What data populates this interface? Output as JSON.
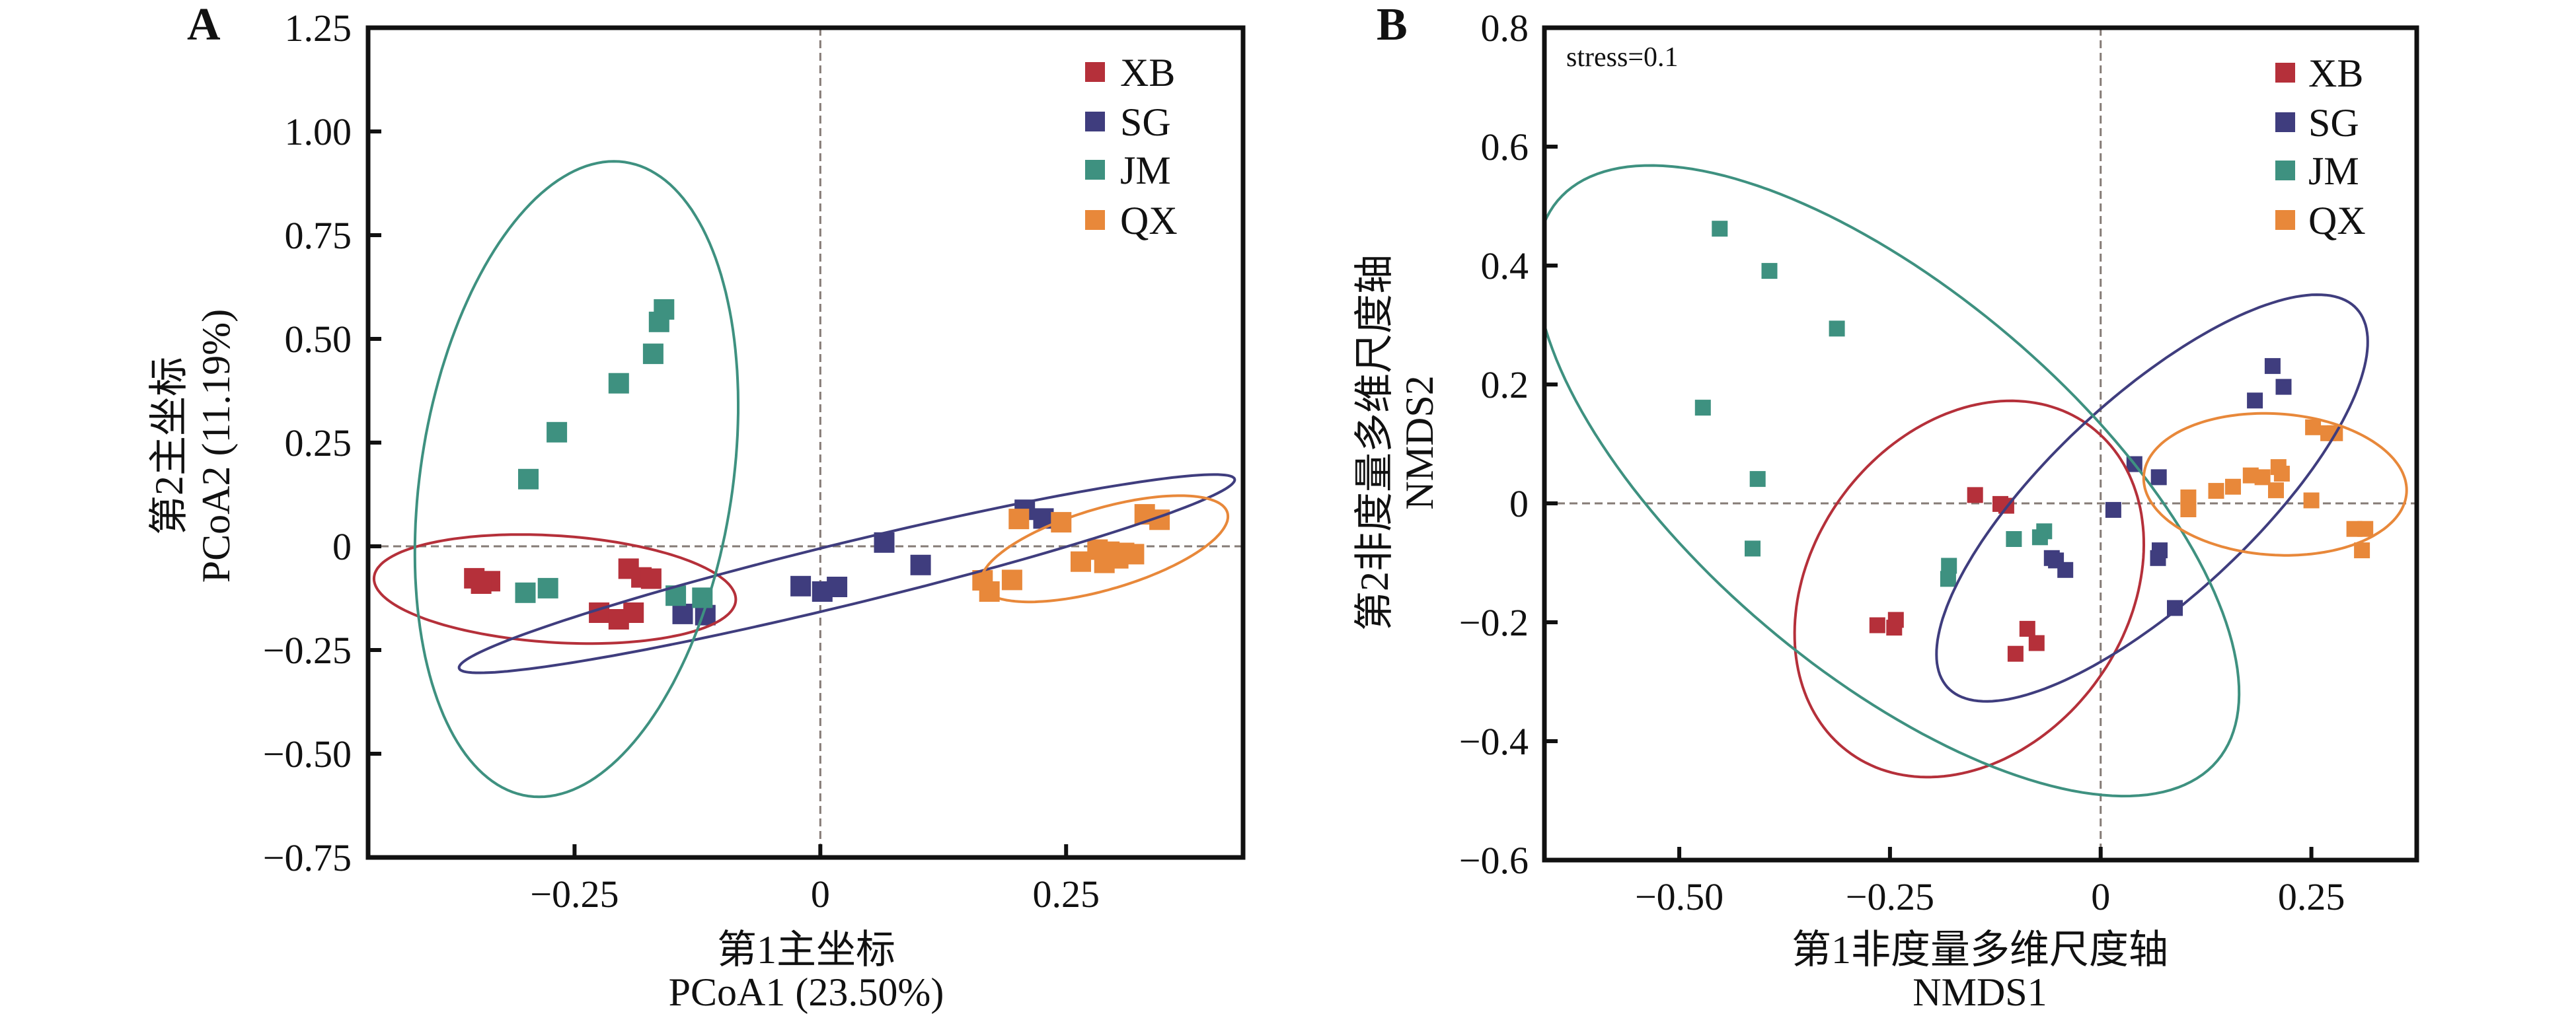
{
  "figure": {
    "panels": [
      "A",
      "B"
    ]
  },
  "groups": [
    {
      "name": "XB",
      "color": "#B5303A"
    },
    {
      "name": "SG",
      "color": "#3F3D7E"
    },
    {
      "name": "JM",
      "color": "#3E9180"
    },
    {
      "name": "QX",
      "color": "#E8883A"
    }
  ],
  "chart_data": [
    {
      "type": "scatter",
      "panel_label": "A",
      "title": "",
      "xlabel_cn": "第1主坐标",
      "xlabel": "PCoA1 (23.50%)",
      "ylabel_cn": "第2主坐标",
      "ylabel": "PCoA2 (11.19%)",
      "xlim": [
        -0.46,
        0.43
      ],
      "ylim": [
        -0.75,
        1.25
      ],
      "xticks": [
        -0.25,
        0,
        0.25
      ],
      "xtick_labels": [
        "−0.25",
        "0",
        "0.25"
      ],
      "yticks": [
        1.25,
        1.0,
        0.75,
        0.5,
        0.25,
        0,
        -0.25,
        -0.5,
        -0.75
      ],
      "ytick_labels": [
        "1.25",
        "1.00",
        "0.75",
        "0.50",
        "0.25",
        "0",
        "−0.25",
        "−0.50",
        "−0.75"
      ],
      "reference_lines": {
        "x": 0,
        "y": 0,
        "style": "dashed"
      },
      "legend": {
        "entries": [
          "XB",
          "SG",
          "JM",
          "QX"
        ],
        "placement": "top-right"
      },
      "annotation": "",
      "series": [
        {
          "name": "XB",
          "points": [
            [
              -0.352,
              -0.077
            ],
            [
              -0.336,
              -0.084
            ],
            [
              -0.345,
              -0.09
            ],
            [
              -0.195,
              -0.054
            ],
            [
              -0.182,
              -0.075
            ],
            [
              -0.172,
              -0.078
            ],
            [
              -0.225,
              -0.16
            ],
            [
              -0.205,
              -0.176
            ],
            [
              -0.19,
              -0.16
            ]
          ]
        },
        {
          "name": "SG",
          "points": [
            [
              -0.14,
              -0.163
            ],
            [
              -0.117,
              -0.166
            ],
            [
              -0.02,
              -0.096
            ],
            [
              0.002,
              -0.109
            ],
            [
              0.017,
              -0.098
            ],
            [
              0.065,
              0.009
            ],
            [
              0.102,
              -0.045
            ],
            [
              0.208,
              0.088
            ],
            [
              0.227,
              0.067
            ]
          ]
        },
        {
          "name": "JM",
          "points": [
            [
              -0.159,
              0.571
            ],
            [
              -0.164,
              0.541
            ],
            [
              -0.17,
              0.464
            ],
            [
              -0.205,
              0.393
            ],
            [
              -0.268,
              0.275
            ],
            [
              -0.297,
              0.162
            ],
            [
              -0.3,
              -0.112
            ],
            [
              -0.277,
              -0.101
            ],
            [
              -0.147,
              -0.119
            ],
            [
              -0.12,
              -0.124
            ]
          ]
        },
        {
          "name": "QX",
          "points": [
            [
              0.202,
              0.066
            ],
            [
              0.245,
              0.058
            ],
            [
              0.33,
              0.077
            ],
            [
              0.345,
              0.064
            ],
            [
              0.265,
              -0.037
            ],
            [
              0.282,
              -0.008
            ],
            [
              0.294,
              -0.013
            ],
            [
              0.309,
              -0.016
            ],
            [
              0.319,
              -0.019
            ],
            [
              0.289,
              -0.04
            ],
            [
              0.303,
              -0.029
            ],
            [
              0.165,
              -0.082
            ],
            [
              0.172,
              -0.109
            ],
            [
              0.195,
              -0.081
            ]
          ]
        }
      ],
      "ellipses": [
        {
          "group": "XB",
          "center": [
            -0.27,
            -0.103
          ],
          "axis1": [
            0.184,
            -0.025
          ],
          "axis2": [
            0.0,
            0.129
          ]
        },
        {
          "group": "SG",
          "center": [
            0.027,
            -0.066
          ],
          "axis1": [
            0.394,
            0.23
          ],
          "axis2": [
            -0.02,
            0.065
          ]
        },
        {
          "group": "JM",
          "center": [
            -0.248,
            0.162
          ],
          "axis1": [
            0.16,
            0.0
          ],
          "axis2": [
            0.038,
            0.766
          ]
        },
        {
          "group": "QX",
          "center": [
            0.289,
            -0.006
          ],
          "axis1": [
            0.122,
            0.1
          ],
          "axis2": [
            -0.03,
            0.08
          ]
        }
      ]
    },
    {
      "type": "scatter",
      "panel_label": "B",
      "title": "",
      "xlabel_cn": "第1非度量多维尺度轴",
      "xlabel": "NMDS1",
      "ylabel_cn": "第2非度量多维尺度轴",
      "ylabel": "NMDS2",
      "xlim": [
        -0.66,
        0.375
      ],
      "ylim": [
        -0.6,
        0.8
      ],
      "xticks": [
        -0.5,
        -0.25,
        0,
        0.25
      ],
      "xtick_labels": [
        "−0.50",
        "−0.25",
        "0",
        "0.25"
      ],
      "yticks": [
        0.8,
        0.6,
        0.4,
        0.2,
        0,
        -0.2,
        -0.4,
        -0.6
      ],
      "ytick_labels": [
        "0.8",
        "0.6",
        "0.4",
        "0.2",
        "0",
        "−0.2",
        "−0.4",
        "−0.6"
      ],
      "reference_lines": {
        "x": 0,
        "y": 0,
        "style": "dashed"
      },
      "legend": {
        "entries": [
          "XB",
          "SG",
          "JM",
          "QX"
        ],
        "placement": "top-right"
      },
      "annotation": "stress=0.1",
      "series": [
        {
          "name": "XB",
          "points": [
            [
              -0.149,
              0.014
            ],
            [
              -0.119,
              -0.001
            ],
            [
              -0.112,
              -0.004
            ],
            [
              -0.265,
              -0.205
            ],
            [
              -0.243,
              -0.196
            ],
            [
              -0.245,
              -0.209
            ],
            [
              -0.087,
              -0.211
            ],
            [
              -0.076,
              -0.235
            ],
            [
              -0.101,
              -0.253
            ]
          ]
        },
        {
          "name": "SG",
          "points": [
            [
              -0.058,
              -0.092
            ],
            [
              -0.053,
              -0.096
            ],
            [
              -0.042,
              -0.112
            ],
            [
              0.015,
              -0.011
            ],
            [
              0.04,
              0.066
            ],
            [
              0.069,
              0.044
            ],
            [
              0.07,
              -0.079
            ],
            [
              0.068,
              -0.092
            ],
            [
              0.088,
              -0.176
            ],
            [
              0.204,
              0.231
            ],
            [
              0.217,
              0.196
            ],
            [
              0.183,
              0.173
            ]
          ]
        },
        {
          "name": "JM",
          "points": [
            [
              -0.452,
              0.462
            ],
            [
              -0.393,
              0.391
            ],
            [
              -0.313,
              0.294
            ],
            [
              -0.472,
              0.161
            ],
            [
              -0.407,
              0.041
            ],
            [
              -0.413,
              -0.076
            ],
            [
              -0.103,
              -0.06
            ],
            [
              -0.067,
              -0.047
            ],
            [
              -0.072,
              -0.057
            ],
            [
              -0.18,
              -0.105
            ],
            [
              -0.181,
              -0.127
            ]
          ]
        },
        {
          "name": "QX",
          "points": [
            [
              0.104,
              0.01
            ],
            [
              0.104,
              -0.01
            ],
            [
              0.137,
              0.021
            ],
            [
              0.157,
              0.028
            ],
            [
              0.178,
              0.047
            ],
            [
              0.192,
              0.044
            ],
            [
              0.211,
              0.061
            ],
            [
              0.215,
              0.05
            ],
            [
              0.208,
              0.022
            ],
            [
              0.252,
              0.128
            ],
            [
              0.27,
              0.118
            ],
            [
              0.278,
              0.118
            ],
            [
              0.25,
              0.005
            ],
            [
              0.301,
              -0.043
            ],
            [
              0.314,
              -0.043
            ],
            [
              0.31,
              -0.079
            ]
          ]
        }
      ],
      "ellipses": [
        {
          "group": "XB",
          "center": [
            -0.156,
            -0.144
          ],
          "axis1": [
            0.205,
            0.03
          ],
          "axis2": [
            0.03,
            0.315
          ]
        },
        {
          "group": "SG",
          "center": [
            0.061,
            0.009
          ],
          "axis1": [
            0.243,
            0.318
          ],
          "axis2": [
            0.08,
            -0.126
          ]
        },
        {
          "group": "JM",
          "center": [
            -0.253,
            0.038
          ],
          "axis1": [
            0.374,
            -0.494
          ],
          "axis2": [
            0.185,
            0.193
          ]
        },
        {
          "group": "QX",
          "center": [
            0.207,
            0.032
          ],
          "axis1": [
            0.156,
            -0.01
          ],
          "axis2": [
            0.0,
            0.119
          ]
        }
      ]
    }
  ]
}
